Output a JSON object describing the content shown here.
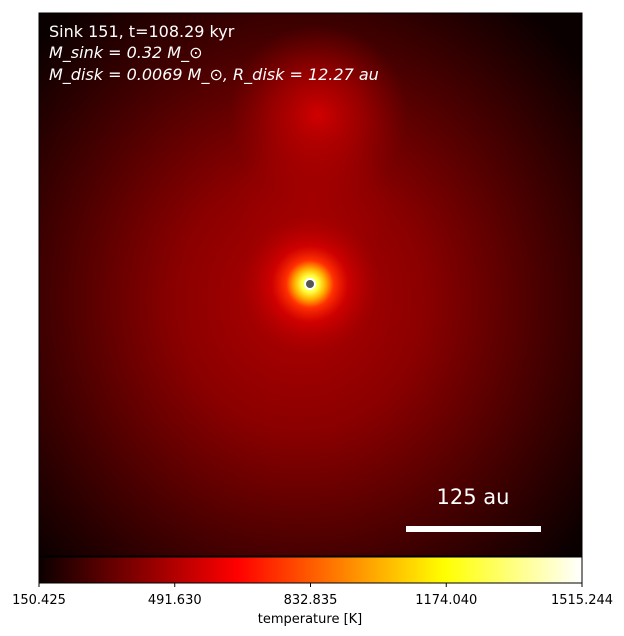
{
  "chart_data": {
    "type": "heatmap",
    "annotations": {
      "line1": "Sink 151, t=108.29 kyr",
      "line2": "M_sink = 0.32 M_⊙",
      "line3": "M_disk = 0.0069 M_⊙, R_disk = 12.27 au",
      "scalebar_label": "125 au"
    },
    "colorbar": {
      "label": "temperature [K]",
      "ticks": [
        "150.425",
        "491.630",
        "832.835",
        "1174.040",
        "1515.244"
      ],
      "range": [
        150.425,
        1515.244
      ],
      "colormap": "hot"
    },
    "sink_marker": {
      "color": "#555555",
      "edge_color": "#ffffff"
    },
    "colors": {
      "background_dark": "#0d0000",
      "glow_center": "#d40000",
      "hot_core": "#ffff80",
      "scalebar": "#ffffff"
    }
  }
}
